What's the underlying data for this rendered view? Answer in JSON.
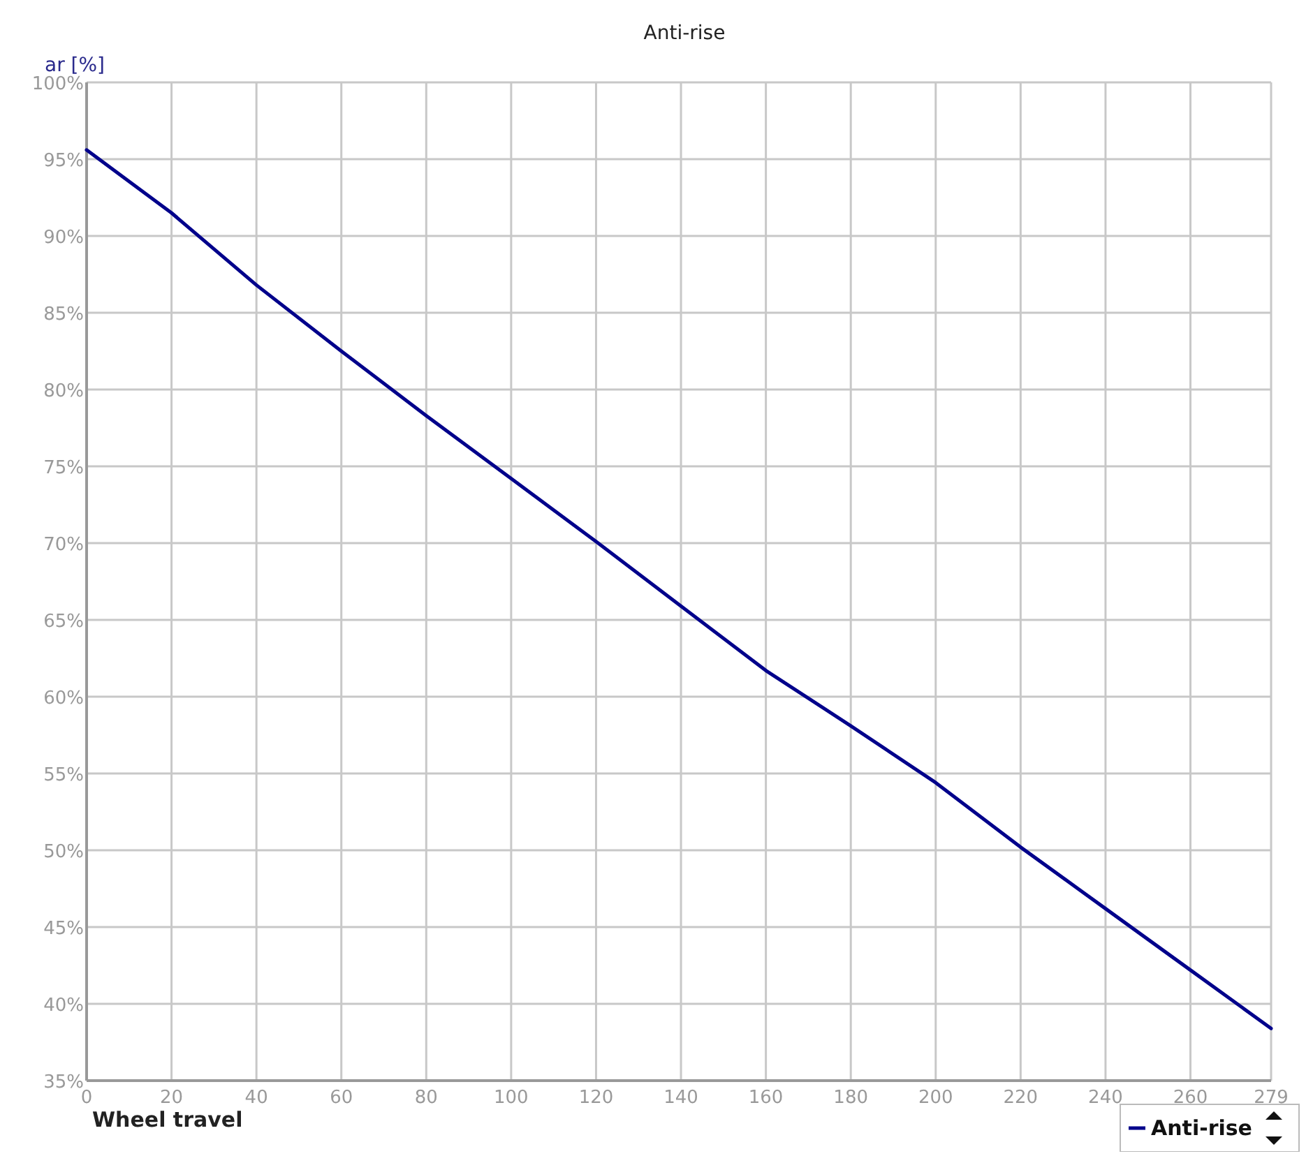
{
  "chart_data": {
    "type": "line",
    "title": "Anti-rise",
    "xlabel": "Wheel travel",
    "ylabel": "ar [%]",
    "x": [
      0,
      20,
      40,
      60,
      80,
      100,
      120,
      140,
      160,
      180,
      200,
      220,
      240,
      260,
      279
    ],
    "series": [
      {
        "name": "Anti-rise",
        "color": "#00008b",
        "values": [
          95.6,
          91.5,
          86.8,
          82.5,
          78.3,
          74.2,
          70.1,
          65.9,
          61.7,
          58.1,
          54.4,
          50.2,
          46.2,
          42.2,
          38.4
        ]
      }
    ],
    "xlim": [
      0,
      279
    ],
    "xticks": [
      0,
      20,
      40,
      60,
      80,
      100,
      120,
      140,
      160,
      180,
      200,
      220,
      240,
      260,
      279
    ],
    "ylim": [
      35,
      100
    ],
    "yticks": [
      {
        "value": 35,
        "label": "35%"
      },
      {
        "value": 40,
        "label": "40%"
      },
      {
        "value": 45,
        "label": "45%"
      },
      {
        "value": 50,
        "label": "50%"
      },
      {
        "value": 55,
        "label": "55%"
      },
      {
        "value": 60,
        "label": "60%"
      },
      {
        "value": 65,
        "label": "65%"
      },
      {
        "value": 70,
        "label": "70%"
      },
      {
        "value": 75,
        "label": "75%"
      },
      {
        "value": 80,
        "label": "80%"
      },
      {
        "value": 85,
        "label": "85%"
      },
      {
        "value": 90,
        "label": "90%"
      },
      {
        "value": 95,
        "label": "95%"
      },
      {
        "value": 100,
        "label": "100%"
      }
    ],
    "grid": true,
    "legend": "bottom right",
    "marker": "none",
    "line_style": "solid"
  }
}
